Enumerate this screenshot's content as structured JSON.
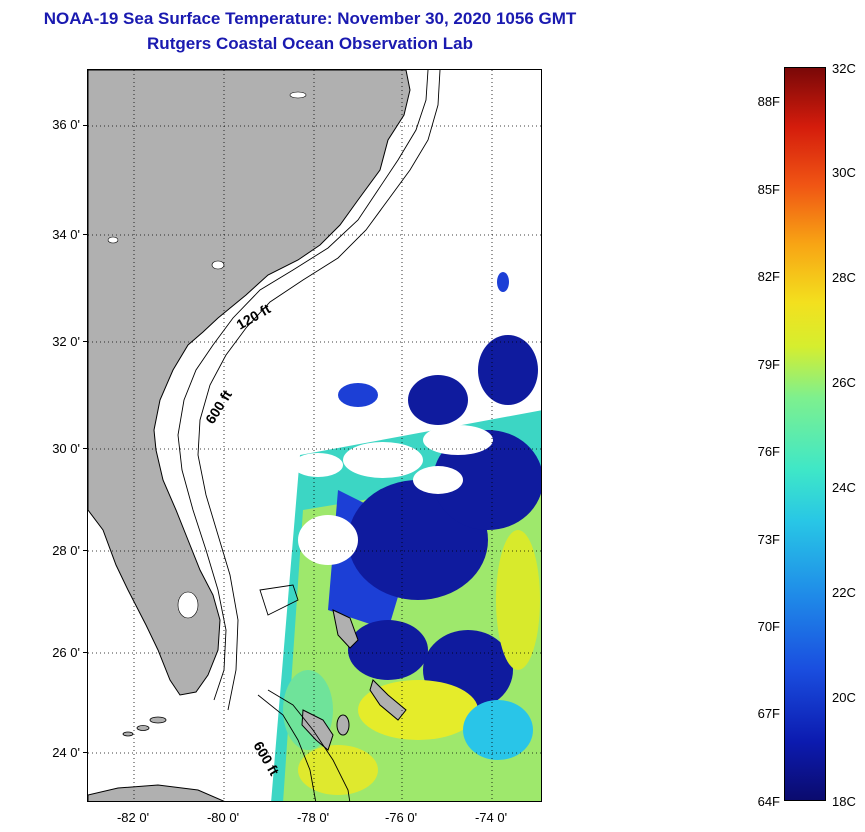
{
  "title": {
    "line1": "NOAA-19 Sea Surface Temperature:  November 30, 2020 1056 GMT",
    "line2": "Rutgers Coastal Ocean Observation Lab"
  },
  "map": {
    "lat_labels": [
      "36 0'",
      "34 0'",
      "32 0'",
      "30 0'",
      "28 0'",
      "26 0'",
      "24 0'"
    ],
    "lon_labels": [
      "-82 0'",
      "-80 0'",
      "-78 0'",
      "-76 0'",
      "-74 0'"
    ],
    "contour_labels": [
      "120 ft",
      "600 ft",
      "600 ft"
    ],
    "land_color": "#b0b0b0",
    "cloud_color": "#ffffff"
  },
  "colorbar": {
    "fahrenheit": [
      "88F",
      "85F",
      "82F",
      "79F",
      "76F",
      "73F",
      "70F",
      "67F",
      "64F"
    ],
    "celsius": [
      "32C",
      "30C",
      "28C",
      "26C",
      "24C",
      "22C",
      "20C",
      "18C"
    ],
    "range_c": [
      18,
      32
    ]
  }
}
